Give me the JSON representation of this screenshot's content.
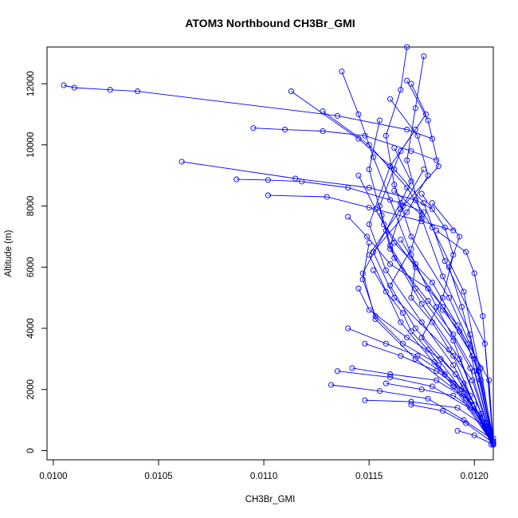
{
  "chart_data": {
    "type": "line",
    "title": "ATOM3 Northbound CH3Br_GMI",
    "xlabel": "CH3Br_GMI",
    "ylabel": "Altitude (m)",
    "xlim": [
      0.00997,
      0.01209
    ],
    "ylim": [
      -300,
      13200
    ],
    "x_ticks": [
      0.01,
      0.0105,
      0.011,
      0.0115,
      0.012
    ],
    "x_tick_labels": [
      "0.0100",
      "0.0105",
      "0.0110",
      "0.0115",
      "0.0120"
    ],
    "y_ticks": [
      0,
      2000,
      4000,
      6000,
      8000,
      10000,
      12000
    ],
    "y_tick_labels": [
      "0",
      "2000",
      "4000",
      "6000",
      "8000",
      "10000",
      "12000"
    ],
    "grid": false,
    "legend": "none",
    "color": "#0000ff",
    "series": [
      {
        "x": [
          0.01005,
          0.0101,
          0.01027,
          0.0104,
          0.01135,
          0.01168,
          0.0118
        ],
        "y": [
          11950,
          11870,
          11800,
          11750,
          10950,
          10500,
          10200
        ]
      },
      {
        "x": [
          0.01095,
          0.0111,
          0.01128,
          0.01148,
          0.0117,
          0.01182
        ],
        "y": [
          10550,
          10500,
          10450,
          10300,
          9800,
          9500
        ]
      },
      {
        "x": [
          0.01061,
          0.01115,
          0.0115,
          0.01172,
          0.0118
        ],
        "y": [
          9450,
          8900,
          8600,
          8200,
          7900
        ]
      },
      {
        "x": [
          0.01087,
          0.01102,
          0.01118,
          0.0114,
          0.01165,
          0.01176
        ],
        "y": [
          8870,
          8850,
          8800,
          8600,
          8100,
          7800
        ]
      },
      {
        "x": [
          0.01102,
          0.0113,
          0.0115,
          0.01175,
          0.0119
        ],
        "y": [
          8350,
          8300,
          7950,
          7500,
          7200
        ]
      },
      {
        "x": [
          0.01132,
          0.01155,
          0.01178,
          0.01195,
          0.01208,
          0.01209
        ],
        "y": [
          2150,
          1950,
          1700,
          1000,
          400,
          200
        ]
      },
      {
        "x": [
          0.01135,
          0.0116,
          0.0118,
          0.012,
          0.01209
        ],
        "y": [
          2600,
          2400,
          2100,
          1300,
          300
        ]
      },
      {
        "x": [
          0.01148,
          0.0117,
          0.01192,
          0.01205,
          0.01209
        ],
        "y": [
          1650,
          1600,
          1400,
          800,
          250
        ]
      },
      {
        "x": [
          0.01137,
          0.01145,
          0.01152,
          0.0116,
          0.0117,
          0.01182,
          0.01198,
          0.01209
        ],
        "y": [
          12400,
          11000,
          9600,
          8200,
          6400,
          4700,
          2700,
          200
        ]
      },
      {
        "x": [
          0.01168,
          0.01165,
          0.01158,
          0.01162,
          0.0117,
          0.01188,
          0.01203,
          0.01209
        ],
        "y": [
          13200,
          11800,
          10300,
          8700,
          7000,
          5000,
          2700,
          200
        ]
      },
      {
        "x": [
          0.01176,
          0.01172,
          0.01168,
          0.01175,
          0.01185,
          0.01198,
          0.01209
        ],
        "y": [
          12900,
          11200,
          9500,
          7600,
          5700,
          3800,
          300
        ]
      },
      {
        "x": [
          0.0117,
          0.01177,
          0.01165,
          0.01155,
          0.0116,
          0.01175,
          0.01193,
          0.01209
        ],
        "y": [
          12000,
          11000,
          9800,
          8000,
          6600,
          4800,
          3000,
          200
        ]
      },
      {
        "x": [
          0.0116,
          0.01173,
          0.01178,
          0.01168,
          0.01152,
          0.01162,
          0.0119,
          0.01208
        ],
        "y": [
          11500,
          10300,
          9000,
          7800,
          6500,
          5000,
          3100,
          200
        ]
      },
      {
        "x": [
          0.01155,
          0.0115,
          0.01157,
          0.01172,
          0.01185,
          0.012,
          0.01209
        ],
        "y": [
          10800,
          9200,
          7400,
          6000,
          4700,
          3000,
          250
        ]
      },
      {
        "x": [
          0.01113,
          0.01145,
          0.01162,
          0.01176,
          0.01186,
          0.01205,
          0.01209
        ],
        "y": [
          11750,
          10200,
          9200,
          8100,
          6200,
          3500,
          200
        ]
      },
      {
        "x": [
          0.01128,
          0.0115,
          0.01168,
          0.0118,
          0.01195,
          0.01209
        ],
        "y": [
          11100,
          10000,
          8600,
          7300,
          5200,
          400
        ]
      },
      {
        "x": [
          0.0114,
          0.01149,
          0.0116,
          0.01178,
          0.01192,
          0.01207,
          0.01209
        ],
        "y": [
          7650,
          7000,
          6100,
          5300,
          4100,
          2300,
          200
        ]
      },
      {
        "x": [
          0.01145,
          0.01153,
          0.01162,
          0.0118,
          0.01197,
          0.01209
        ],
        "y": [
          9000,
          7900,
          6800,
          5500,
          3500,
          200
        ]
      },
      {
        "x": [
          0.01172,
          0.0116,
          0.0115,
          0.01158,
          0.01175,
          0.0119,
          0.01209
        ],
        "y": [
          10500,
          9300,
          7400,
          5900,
          4200,
          2800,
          300
        ]
      },
      {
        "x": [
          0.01168,
          0.01178,
          0.01183,
          0.01165,
          0.0115,
          0.01165,
          0.0119,
          0.01209
        ],
        "y": [
          12100,
          10800,
          9300,
          7900,
          6400,
          4200,
          2100,
          200
        ]
      },
      {
        "x": [
          0.01162,
          0.0117,
          0.01158,
          0.01147,
          0.01153,
          0.01172,
          0.012,
          0.01209
        ],
        "y": [
          9900,
          8800,
          7200,
          5800,
          4300,
          3000,
          1500,
          200
        ]
      },
      {
        "x": [
          0.01175,
          0.01186,
          0.0119,
          0.01185,
          0.01175,
          0.01195,
          0.01209
        ],
        "y": [
          8400,
          7300,
          6400,
          5000,
          3700,
          1900,
          200
        ]
      },
      {
        "x": [
          0.01182,
          0.01196,
          0.012,
          0.01204,
          0.01209
        ],
        "y": [
          7200,
          6500,
          5800,
          4400,
          300
        ]
      },
      {
        "x": [
          0.0118,
          0.01193,
          0.01188,
          0.01194,
          0.01202,
          0.01209
        ],
        "y": [
          8100,
          7000,
          6000,
          4700,
          2600,
          200
        ]
      },
      {
        "x": [
          0.0115,
          0.01147,
          0.01153,
          0.01166,
          0.01181,
          0.01198,
          0.01209
        ],
        "y": [
          6800,
          5600,
          4400,
          3500,
          2900,
          1600,
          200
        ]
      },
      {
        "x": [
          0.01145,
          0.0115,
          0.01168,
          0.01184,
          0.01195,
          0.01209
        ],
        "y": [
          5300,
          4600,
          3700,
          3000,
          2200,
          250
        ]
      },
      {
        "x": [
          0.0114,
          0.01158,
          0.01173,
          0.01186,
          0.01198,
          0.01209
        ],
        "y": [
          4000,
          3500,
          3100,
          2500,
          1800,
          200
        ]
      },
      {
        "x": [
          0.01148,
          0.01165,
          0.01182,
          0.01194,
          0.01209
        ],
        "y": [
          3500,
          3100,
          2600,
          2000,
          300
        ]
      },
      {
        "x": [
          0.01142,
          0.0116,
          0.01182,
          0.01196,
          0.01206,
          0.01209
        ],
        "y": [
          2700,
          2500,
          2300,
          1700,
          900,
          200
        ]
      },
      {
        "x": [
          0.01158,
          0.01175,
          0.0119,
          0.01203,
          0.01209
        ],
        "y": [
          2200,
          2000,
          1800,
          1200,
          200
        ]
      },
      {
        "x": [
          0.0117,
          0.01185,
          0.01196,
          0.01209
        ],
        "y": [
          1500,
          1300,
          900,
          250
        ]
      },
      {
        "x": [
          0.01192,
          0.012,
          0.01209
        ],
        "y": [
          650,
          500,
          200
        ]
      },
      {
        "x": [
          0.01152,
          0.01158,
          0.01166,
          0.0117,
          0.01178,
          0.01183,
          0.0119,
          0.01198,
          0.01209
        ],
        "y": [
          5900,
          5200,
          4500,
          3900,
          3300,
          2800,
          2200,
          1400,
          200
        ]
      },
      {
        "x": [
          0.01165,
          0.01172,
          0.0117,
          0.0118,
          0.01188,
          0.01199,
          0.01209
        ],
        "y": [
          6900,
          6100,
          5000,
          4200,
          3300,
          2300,
          200
        ]
      },
      {
        "x": [
          0.01185,
          0.01193,
          0.01199,
          0.01203,
          0.01209
        ],
        "y": [
          4600,
          3900,
          3100,
          2300,
          200
        ]
      },
      {
        "x": [
          0.01156,
          0.01162,
          0.01178,
          0.0119,
          0.012,
          0.01209
        ],
        "y": [
          7700,
          6300,
          4900,
          3800,
          2600,
          200
        ]
      },
      {
        "x": [
          0.01176,
          0.01166,
          0.0116,
          0.01172,
          0.0119,
          0.01209
        ],
        "y": [
          9200,
          8000,
          6700,
          5300,
          3600,
          200
        ]
      },
      {
        "x": [
          0.01162,
          0.01175,
          0.0117,
          0.0116,
          0.01172,
          0.01191,
          0.01209
        ],
        "y": [
          8500,
          7700,
          6600,
          5400,
          4000,
          2500,
          200
        ]
      }
    ]
  }
}
